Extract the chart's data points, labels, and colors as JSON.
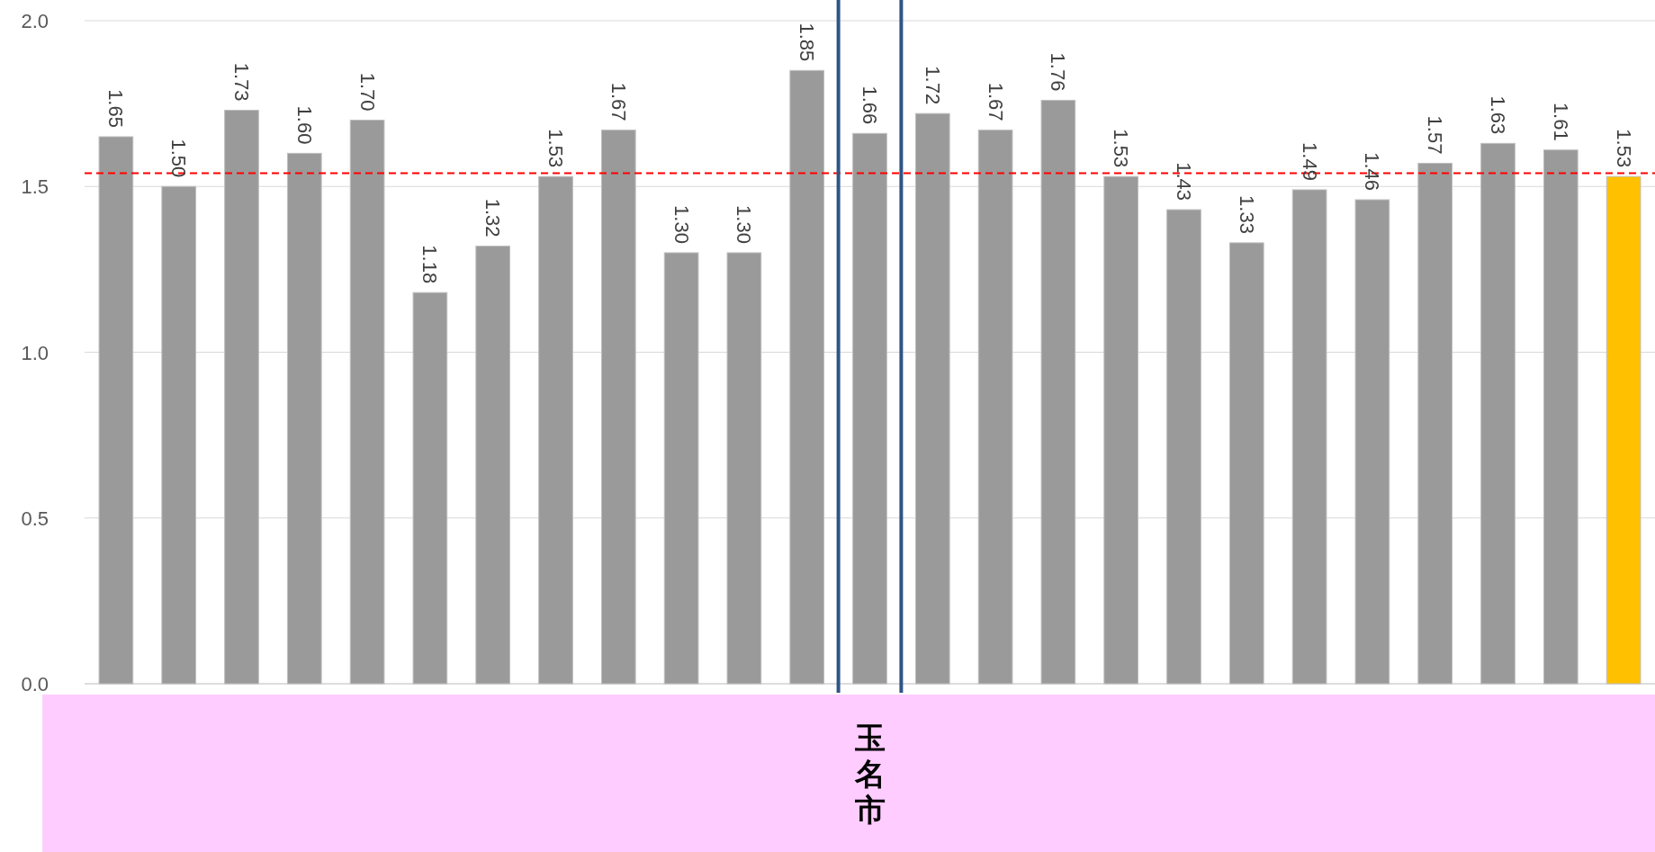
{
  "chart_data": {
    "type": "bar",
    "categories": [
      null,
      null,
      null,
      null,
      null,
      null,
      null,
      null,
      null,
      null,
      null,
      null,
      "玉名市",
      null,
      null,
      null,
      null,
      null,
      null,
      null,
      null,
      null,
      null,
      null,
      null
    ],
    "values": [
      1.65,
      1.5,
      1.73,
      1.6,
      1.7,
      1.18,
      1.32,
      1.53,
      1.67,
      1.3,
      1.3,
      1.85,
      1.66,
      1.72,
      1.67,
      1.76,
      1.53,
      1.43,
      1.33,
      1.49,
      1.46,
      1.57,
      1.63,
      1.61,
      1.53
    ],
    "value_labels": [
      "1.65",
      "1.50",
      "1.73",
      "1.60",
      "1.70",
      "1.18",
      "1.32",
      "1.53",
      "1.67",
      "1.30",
      "1.30",
      "1.85",
      "1.66",
      "1.72",
      "1.67",
      "1.76",
      "1.53",
      "1.43",
      "1.33",
      "1.49",
      "1.46",
      "1.57",
      "1.63",
      "1.61",
      "1.53"
    ],
    "colors": [
      "#9a9a9a",
      "#9a9a9a",
      "#9a9a9a",
      "#9a9a9a",
      "#9a9a9a",
      "#9a9a9a",
      "#9a9a9a",
      "#9a9a9a",
      "#9a9a9a",
      "#9a9a9a",
      "#9a9a9a",
      "#9a9a9a",
      "#9a9a9a",
      "#9a9a9a",
      "#9a9a9a",
      "#9a9a9a",
      "#9a9a9a",
      "#9a9a9a",
      "#9a9a9a",
      "#9a9a9a",
      "#9a9a9a",
      "#9a9a9a",
      "#9a9a9a",
      "#9a9a9a",
      "#ffc000"
    ],
    "ylim": [
      0,
      2
    ],
    "yticks": [
      {
        "value": 0,
        "label": "0.0"
      },
      0.5,
      {
        "value": 1,
        "label": "1.0"
      },
      1.5,
      {
        "value": 2,
        "label": "2.0"
      }
    ],
    "grid": "y",
    "ref_lines": [
      {
        "axis": "y",
        "value": 1.54,
        "color": "#ff0000",
        "line_style": "dashed"
      }
    ]
  }
}
